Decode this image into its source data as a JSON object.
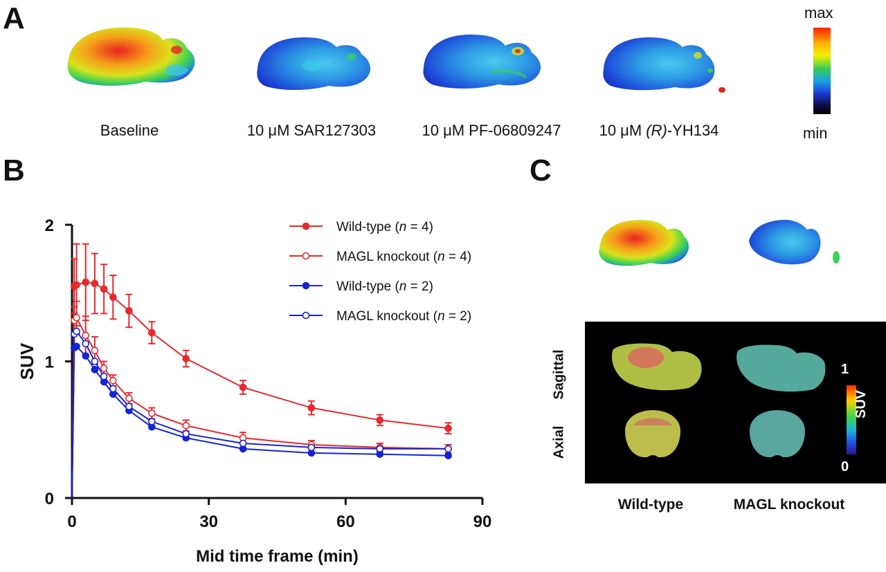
{
  "panels": {
    "a": "A",
    "b": "B",
    "c": "C"
  },
  "panel_a": {
    "captions": [
      {
        "prefix": "Baseline",
        "italic": "",
        "suffix": ""
      },
      {
        "prefix": "10 μM  SAR127303",
        "italic": "",
        "suffix": ""
      },
      {
        "prefix": "10 μM PF-06809247",
        "italic": "",
        "suffix": ""
      },
      {
        "prefix": "10 μM ",
        "italic": "(R)",
        "suffix": "-YH134"
      }
    ],
    "scale": {
      "max": "max",
      "min": "min"
    }
  },
  "panel_c": {
    "row_labels": {
      "sagittal": "Sagittal",
      "axial": "Axial"
    },
    "col_labels": {
      "wild_type": "Wild-type",
      "knockout": "MAGL knockout"
    },
    "scale": {
      "top": "1",
      "bottom": "0",
      "label": "SUV"
    }
  },
  "colors": {
    "red": "#e8282d",
    "blue": "#1523d6"
  },
  "chart_data": {
    "type": "line",
    "xlabel": "Mid time frame (min)",
    "ylabel": "SUV",
    "xlim": [
      0,
      90
    ],
    "ylim": [
      0,
      2
    ],
    "xticks": [
      0,
      30,
      60,
      90
    ],
    "yticks": [
      0,
      1,
      2
    ],
    "legend_position": "top-right",
    "series": [
      {
        "name_prefix": "Wild-type (",
        "name_italic": "n",
        "name_suffix": " = 4)",
        "color": "#e8282d",
        "marker": "filled",
        "x": [
          0,
          0.5,
          1,
          3,
          5,
          7,
          9,
          12.5,
          17.5,
          25,
          37.5,
          52.5,
          67.5,
          82.5
        ],
        "y": [
          0,
          1.55,
          1.56,
          1.58,
          1.57,
          1.53,
          1.47,
          1.37,
          1.21,
          1.02,
          0.81,
          0.66,
          0.57,
          0.51
        ],
        "err": [
          0,
          0.2,
          0.3,
          0.28,
          0.22,
          0.18,
          0.16,
          0.12,
          0.08,
          0.06,
          0.05,
          0.05,
          0.04,
          0.04
        ]
      },
      {
        "name_prefix": "MAGL knockout (",
        "name_italic": "n",
        "name_suffix": " = 4)",
        "color": "#e8282d",
        "marker": "open",
        "x": [
          0,
          0.5,
          1,
          3,
          5,
          7,
          9,
          12.5,
          17.5,
          25,
          37.5,
          52.5,
          67.5,
          82.5
        ],
        "y": [
          0,
          1.3,
          1.32,
          1.19,
          1.08,
          0.95,
          0.86,
          0.73,
          0.62,
          0.53,
          0.44,
          0.39,
          0.37,
          0.36
        ],
        "err": [
          0,
          0.1,
          0.12,
          0.14,
          0.1,
          0.05,
          0.04,
          0.04,
          0.04,
          0.04,
          0.04,
          0.03,
          0.03,
          0.03
        ]
      },
      {
        "name_prefix": "Wild-type (",
        "name_italic": "n",
        "name_suffix": " = 2)",
        "color": "#1523d6",
        "marker": "filled",
        "x": [
          0,
          0.5,
          1,
          3,
          5,
          7,
          9,
          12.5,
          17.5,
          25,
          37.5,
          52.5,
          67.5,
          82.5
        ],
        "y": [
          0,
          1.1,
          1.11,
          1.04,
          0.94,
          0.85,
          0.76,
          0.64,
          0.52,
          0.44,
          0.36,
          0.33,
          0.32,
          0.31
        ],
        "err": [
          0,
          0,
          0,
          0,
          0,
          0,
          0,
          0,
          0,
          0,
          0,
          0,
          0,
          0
        ]
      },
      {
        "name_prefix": "MAGL knockout (",
        "name_italic": "n",
        "name_suffix": " = 2)",
        "color": "#1523d6",
        "marker": "open",
        "x": [
          0,
          0.5,
          1,
          3,
          5,
          7,
          9,
          12.5,
          17.5,
          25,
          37.5,
          52.5,
          67.5,
          82.5
        ],
        "y": [
          0,
          1.2,
          1.22,
          1.13,
          1.0,
          0.89,
          0.8,
          0.67,
          0.56,
          0.47,
          0.4,
          0.37,
          0.36,
          0.36
        ],
        "err": [
          0,
          0,
          0,
          0,
          0,
          0,
          0,
          0,
          0,
          0,
          0,
          0,
          0,
          0
        ]
      }
    ]
  }
}
